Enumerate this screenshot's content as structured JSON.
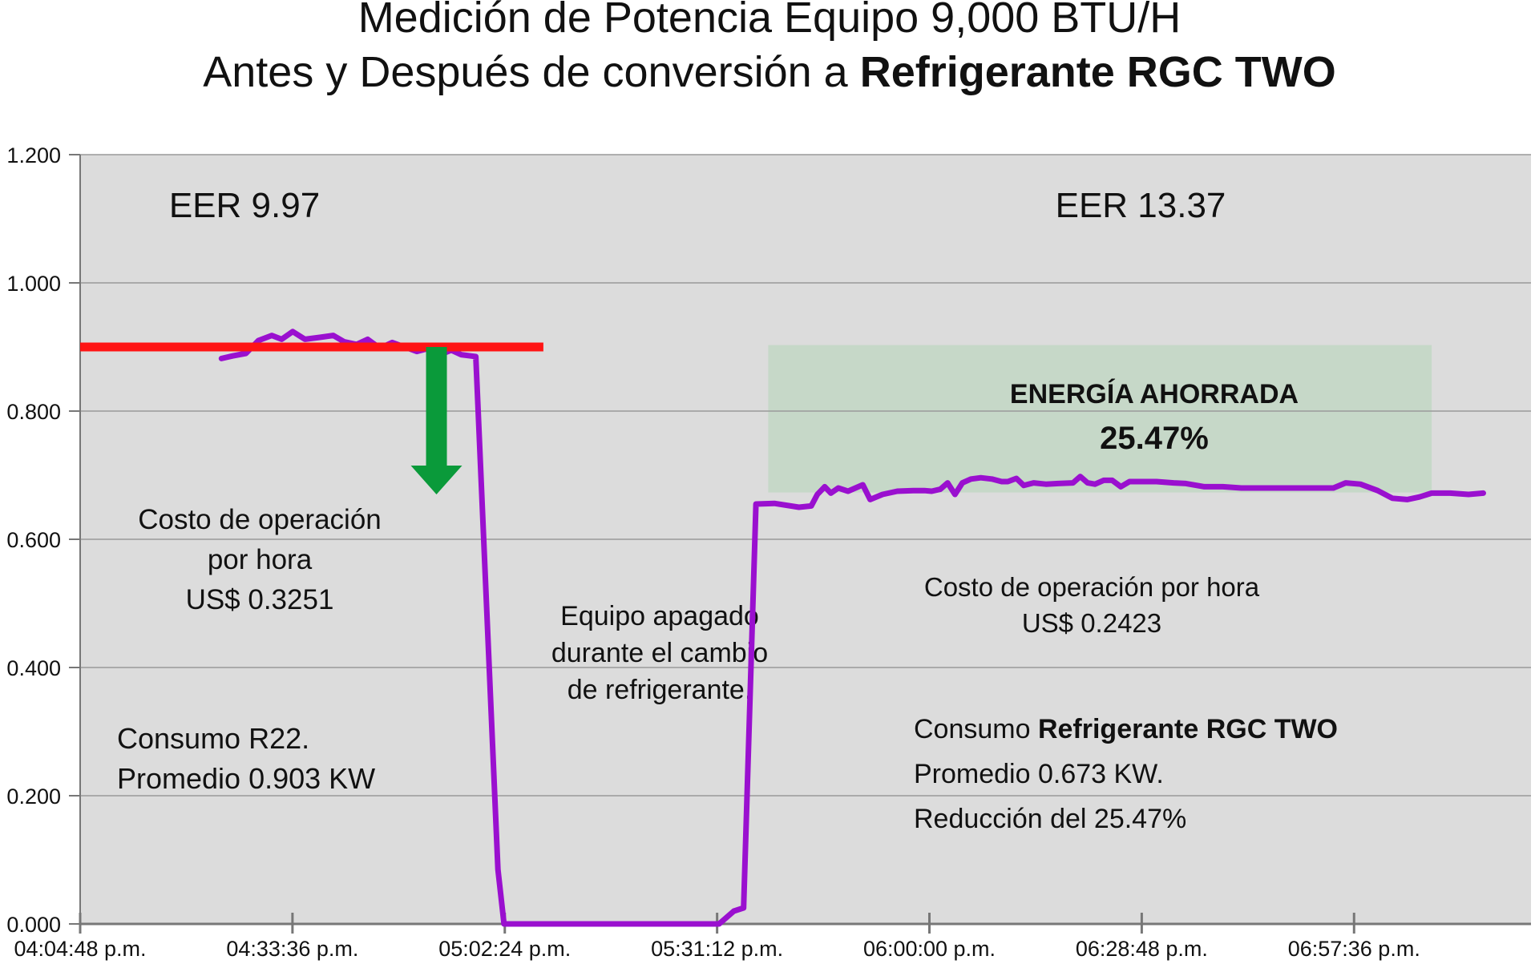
{
  "chart_data": {
    "type": "line",
    "title_line1": "Medición de Potencia Equipo 9,000 BTU/H",
    "title_line2_prefix": "Antes y Después de conversión a ",
    "title_line2_bold": "Refrigerante RGC TWO",
    "xlabel": "",
    "ylabel": "",
    "ylim": [
      0,
      1.2
    ],
    "y_ticks": [
      {
        "value": 0,
        "label": "0.000"
      },
      {
        "value": 0.2,
        "label": "0.200"
      },
      {
        "value": 0.4,
        "label": "0.400"
      },
      {
        "value": 0.6,
        "label": "0.600"
      },
      {
        "value": 0.8,
        "label": "0.800"
      },
      {
        "value": 1.0,
        "label": "1.000"
      },
      {
        "value": 1.2,
        "label": "1.200"
      }
    ],
    "x_unit": "seconds since first tick (04:04:48 p.m.)",
    "xlim": [
      0,
      11808
    ],
    "x_ticks": [
      {
        "value": 0,
        "label": "04:04:48 p.m."
      },
      {
        "value": 1728,
        "label": "04:33:36 p.m."
      },
      {
        "value": 3456,
        "label": "05:02:24 p.m."
      },
      {
        "value": 5184,
        "label": "05:31:12 p.m."
      },
      {
        "value": 6912,
        "label": "06:00:00 p.m."
      },
      {
        "value": 8640,
        "label": "06:28:48 p.m."
      },
      {
        "value": 10368,
        "label": "06:57:36 p.m."
      }
    ],
    "grid": true,
    "plot_background": "#dcdcdc",
    "series": [
      {
        "name": "",
        "color": "#9a10cf",
        "points": [
          [
            1150,
            0.882
          ],
          [
            1240,
            0.886
          ],
          [
            1350,
            0.89
          ],
          [
            1450,
            0.91
          ],
          [
            1560,
            0.918
          ],
          [
            1640,
            0.912
          ],
          [
            1730,
            0.924
          ],
          [
            1830,
            0.912
          ],
          [
            1950,
            0.915
          ],
          [
            2060,
            0.918
          ],
          [
            2150,
            0.908
          ],
          [
            2250,
            0.904
          ],
          [
            2340,
            0.912
          ],
          [
            2440,
            0.898
          ],
          [
            2540,
            0.907
          ],
          [
            2640,
            0.9
          ],
          [
            2740,
            0.893
          ],
          [
            2840,
            0.898
          ],
          [
            2930,
            0.888
          ],
          [
            3020,
            0.895
          ],
          [
            3100,
            0.888
          ],
          [
            3180,
            0.886
          ],
          [
            3220,
            0.885
          ],
          [
            3400,
            0.085
          ],
          [
            3450,
            0.0
          ],
          [
            3900,
            0.0
          ],
          [
            4500,
            0.0
          ],
          [
            5200,
            0.0
          ],
          [
            5320,
            0.02
          ],
          [
            5400,
            0.025
          ],
          [
            5500,
            0.655
          ],
          [
            5650,
            0.656
          ],
          [
            5850,
            0.65
          ],
          [
            5950,
            0.652
          ],
          [
            6000,
            0.67
          ],
          [
            6060,
            0.682
          ],
          [
            6110,
            0.672
          ],
          [
            6170,
            0.68
          ],
          [
            6250,
            0.675
          ],
          [
            6310,
            0.68
          ],
          [
            6370,
            0.685
          ],
          [
            6430,
            0.662
          ],
          [
            6530,
            0.67
          ],
          [
            6650,
            0.675
          ],
          [
            6780,
            0.676
          ],
          [
            6870,
            0.676
          ],
          [
            6930,
            0.675
          ],
          [
            7000,
            0.678
          ],
          [
            7060,
            0.688
          ],
          [
            7120,
            0.67
          ],
          [
            7180,
            0.688
          ],
          [
            7250,
            0.694
          ],
          [
            7330,
            0.696
          ],
          [
            7420,
            0.694
          ],
          [
            7500,
            0.69
          ],
          [
            7550,
            0.69
          ],
          [
            7620,
            0.695
          ],
          [
            7680,
            0.684
          ],
          [
            7760,
            0.688
          ],
          [
            7860,
            0.686
          ],
          [
            7960,
            0.687
          ],
          [
            8080,
            0.688
          ],
          [
            8140,
            0.698
          ],
          [
            8200,
            0.688
          ],
          [
            8260,
            0.686
          ],
          [
            8330,
            0.692
          ],
          [
            8400,
            0.692
          ],
          [
            8470,
            0.682
          ],
          [
            8540,
            0.69
          ],
          [
            8640,
            0.69
          ],
          [
            8760,
            0.69
          ],
          [
            8900,
            0.688
          ],
          [
            9000,
            0.687
          ],
          [
            9150,
            0.682
          ],
          [
            9300,
            0.682
          ],
          [
            9450,
            0.68
          ],
          [
            9600,
            0.68
          ],
          [
            9800,
            0.68
          ],
          [
            9950,
            0.68
          ],
          [
            10100,
            0.68
          ],
          [
            10200,
            0.68
          ],
          [
            10300,
            0.688
          ],
          [
            10420,
            0.686
          ],
          [
            10560,
            0.676
          ],
          [
            10680,
            0.664
          ],
          [
            10800,
            0.662
          ],
          [
            10900,
            0.666
          ],
          [
            11000,
            0.672
          ],
          [
            11150,
            0.672
          ],
          [
            11300,
            0.67
          ],
          [
            11420,
            0.672
          ]
        ]
      }
    ],
    "reference_line": {
      "y": 0.9,
      "x_from": 0,
      "x_to": 3770,
      "color": "#ff1414"
    },
    "down_arrow": {
      "x": 2900,
      "y_from": 0.9,
      "y_to": 0.67,
      "color": "#0a9a3a"
    },
    "saved_region": {
      "x_from": 5600,
      "x_to": 11000,
      "y_from": 0.673,
      "y_to": 0.903,
      "color": "#c6d8c8"
    },
    "annotations": {
      "eer_before": "EER 9.97",
      "eer_after": "EER 13.37",
      "saved_title": "ENERGÍA AHORRADA",
      "saved_value": "25.47%",
      "cost_before_line1": "Costo de operación",
      "cost_before_line2": "por hora",
      "cost_before_line3": "US$ 0.3251",
      "off_line1": "Equipo apagado",
      "off_line2": "durante el cambio",
      "off_line3": "de refrigerante.",
      "cost_after_line1": "Costo de operación por hora",
      "cost_after_line2": "US$ 0.2423",
      "consumo_before_line1": "Consumo R22.",
      "consumo_before_line2": "Promedio 0.903 KW",
      "consumo_after_prefix": "Consumo ",
      "consumo_after_bold": "Refrigerante RGC  TWO",
      "promedio_after": "Promedio 0.673 KW.",
      "reduccion": "Reducción del 25.47%"
    }
  }
}
